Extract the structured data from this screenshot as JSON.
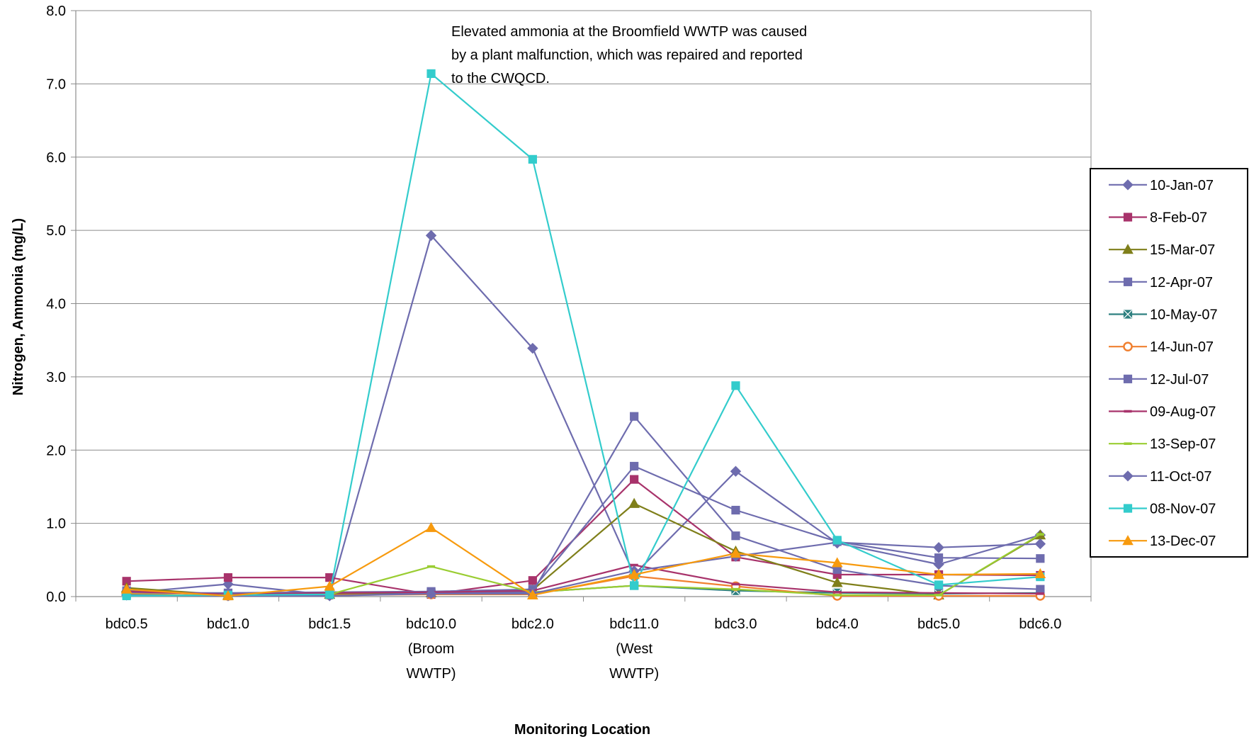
{
  "chart_data": {
    "type": "line",
    "xlabel": "Monitoring Location",
    "ylabel": "Nitrogen, Ammonia (mg/L)",
    "ylim": [
      0,
      8
    ],
    "yticks": [
      "0.0",
      "1.0",
      "2.0",
      "3.0",
      "4.0",
      "5.0",
      "6.0",
      "7.0",
      "8.0"
    ],
    "grid": true,
    "legend_position": "right",
    "categories": [
      [
        "bdc0.5"
      ],
      [
        "bdc1.0"
      ],
      [
        "bdc1.5"
      ],
      [
        "bdc10.0",
        "(Broom",
        "WWTP)"
      ],
      [
        "bdc2.0"
      ],
      [
        "bdc11.0",
        "(West",
        "WWTP)"
      ],
      [
        "bdc3.0"
      ],
      [
        "bdc4.0"
      ],
      [
        "bdc5.0"
      ],
      [
        "bdc6.0"
      ]
    ],
    "annotation": [
      "Elevated ammonia at the Broomfield WWTP was caused",
      "by a plant malfunction, which was repaired and reported",
      "to the CWQCD."
    ],
    "series": [
      {
        "name": "10-Jan-07",
        "color": "#6E6CAE",
        "marker": "diamond",
        "values": [
          0.05,
          0.17,
          0.02,
          4.93,
          3.39,
          0.3,
          1.71,
          0.73,
          0.44,
          0.84
        ]
      },
      {
        "name": "8-Feb-07",
        "color": "#A8336B",
        "marker": "square",
        "values": [
          0.21,
          0.26,
          0.26,
          0.03,
          0.22,
          1.6,
          0.54,
          0.3,
          0.3,
          0.29
        ]
      },
      {
        "name": "15-Mar-07",
        "color": "#7F7F1A",
        "marker": "triangle",
        "values": [
          0.12,
          0.02,
          0.03,
          0.05,
          0.09,
          1.27,
          0.62,
          0.19,
          0.02,
          0.84
        ]
      },
      {
        "name": "12-Apr-07",
        "color": "#6E6CAE",
        "marker": "square",
        "values": [
          0.05,
          0.05,
          0.06,
          0.07,
          0.1,
          1.78,
          1.18,
          0.75,
          0.53,
          0.52
        ]
      },
      {
        "name": "10-May-07",
        "color": "#2E8080",
        "marker": "x-square",
        "values": [
          0.03,
          0.01,
          0.02,
          0.04,
          0.06,
          0.15,
          0.08,
          0.05,
          0.04,
          0.05
        ]
      },
      {
        "name": "14-Jun-07",
        "color": "#F08030",
        "marker": "circle",
        "values": [
          0.04,
          0.01,
          0.02,
          0.03,
          0.03,
          0.28,
          0.14,
          0.01,
          0.01,
          0.01
        ]
      },
      {
        "name": "12-Jul-07",
        "color": "#6E6CAE",
        "marker": "square",
        "values": [
          0.08,
          0.03,
          0.06,
          0.05,
          0.06,
          2.46,
          0.83,
          0.37,
          0.15,
          0.1
        ]
      },
      {
        "name": "09-Aug-07",
        "color": "#A8336B",
        "marker": "dash",
        "values": [
          0.07,
          0.03,
          0.05,
          0.06,
          0.08,
          0.43,
          0.17,
          0.06,
          0.05,
          0.04
        ]
      },
      {
        "name": "13-Sep-07",
        "color": "#9ACD32",
        "marker": "dash",
        "values": [
          0.03,
          0.01,
          0.03,
          0.41,
          0.06,
          0.15,
          0.1,
          0.02,
          0.02,
          0.85
        ]
      },
      {
        "name": "11-Oct-07",
        "color": "#6E6CAE",
        "marker": "diamond",
        "values": [
          0.02,
          0.01,
          0.01,
          0.04,
          0.04,
          0.35,
          0.55,
          0.74,
          0.67,
          0.72
        ]
      },
      {
        "name": "08-Nov-07",
        "color": "#33CCCC",
        "marker": "square",
        "values": [
          0.01,
          0.02,
          0.03,
          7.14,
          5.97,
          0.15,
          2.88,
          0.77,
          0.16,
          0.27
        ]
      },
      {
        "name": "13-Dec-07",
        "color": "#F79A0E",
        "marker": "triangle",
        "values": [
          0.1,
          0.01,
          0.14,
          0.94,
          0.02,
          0.3,
          0.59,
          0.46,
          0.3,
          0.31
        ]
      }
    ]
  }
}
